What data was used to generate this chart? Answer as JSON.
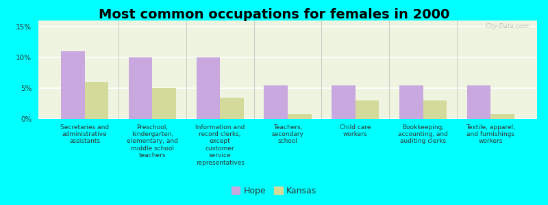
{
  "title": "Most common occupations for females in 2000",
  "categories": [
    "Secretaries and\nadministrative\nassistants",
    "Preschool,\nkindergarten,\nelementary, and\nmiddle school\nteachers",
    "Information and\nrecord clerks,\nexcept\ncustomer\nservice\nrepresentatives",
    "Teachers,\nsecondary\nschool",
    "Child care\nworkers",
    "Bookkeeping,\naccounting, and\nauditing clerks",
    "Textile, apparel,\nand furnishings\nworkers"
  ],
  "hope_values": [
    11.0,
    10.0,
    10.0,
    5.5,
    5.5,
    5.5,
    5.5
  ],
  "kansas_values": [
    6.0,
    5.0,
    3.5,
    0.8,
    3.0,
    3.0,
    0.8
  ],
  "hope_color": "#c9a8e0",
  "kansas_color": "#d4db9a",
  "ylim": [
    0,
    16
  ],
  "yticks": [
    0,
    5,
    10,
    15
  ],
  "ytick_labels": [
    "0%",
    "5%",
    "10%",
    "15%"
  ],
  "background_color": "#00ffff",
  "plot_bg_color": "#eef4e0",
  "watermark": "City-Data.com",
  "bar_width": 0.35,
  "title_fontsize": 14,
  "label_fontsize": 6.5,
  "legend_labels": [
    "Hope",
    "Kansas"
  ],
  "legend_marker_color_hope": "#d090d0",
  "legend_marker_color_kansas": "#d4d890"
}
